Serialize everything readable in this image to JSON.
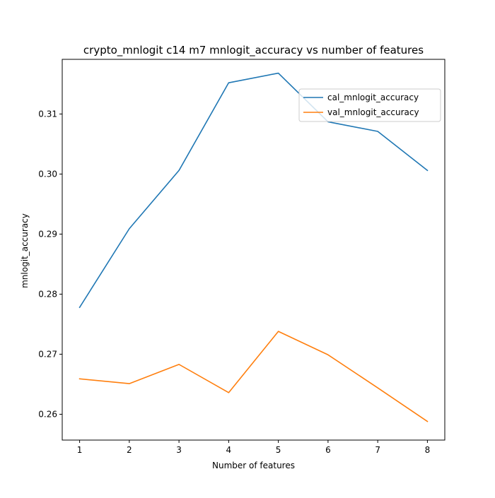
{
  "chart_data": {
    "type": "line",
    "title": "crypto_mnlogit c14 m7 mnlogit_accuracy vs number of features",
    "xlabel": "Number of features",
    "ylabel": "mnlogit_accuracy",
    "x": [
      1,
      2,
      3,
      4,
      5,
      6,
      7,
      8
    ],
    "xticks": [
      "1",
      "2",
      "3",
      "4",
      "5",
      "6",
      "7",
      "8"
    ],
    "yticks": [
      "0.26",
      "0.27",
      "0.28",
      "0.29",
      "0.30",
      "0.31"
    ],
    "xlim": [
      0.65,
      8.35
    ],
    "ylim": [
      0.2557,
      0.3191
    ],
    "grid": false,
    "legend_position": "upper-right",
    "series": [
      {
        "name": "cal_mnlogit_accuracy",
        "color": "#1f77b4",
        "values": [
          0.2778,
          0.2909,
          0.3006,
          0.3152,
          0.3168,
          0.3087,
          0.3071,
          0.3006
        ]
      },
      {
        "name": "val_mnlogit_accuracy",
        "color": "#ff7f0e",
        "values": [
          0.2659,
          0.2651,
          0.2683,
          0.2636,
          0.2738,
          0.2699,
          0.2644,
          0.2588
        ]
      }
    ]
  }
}
